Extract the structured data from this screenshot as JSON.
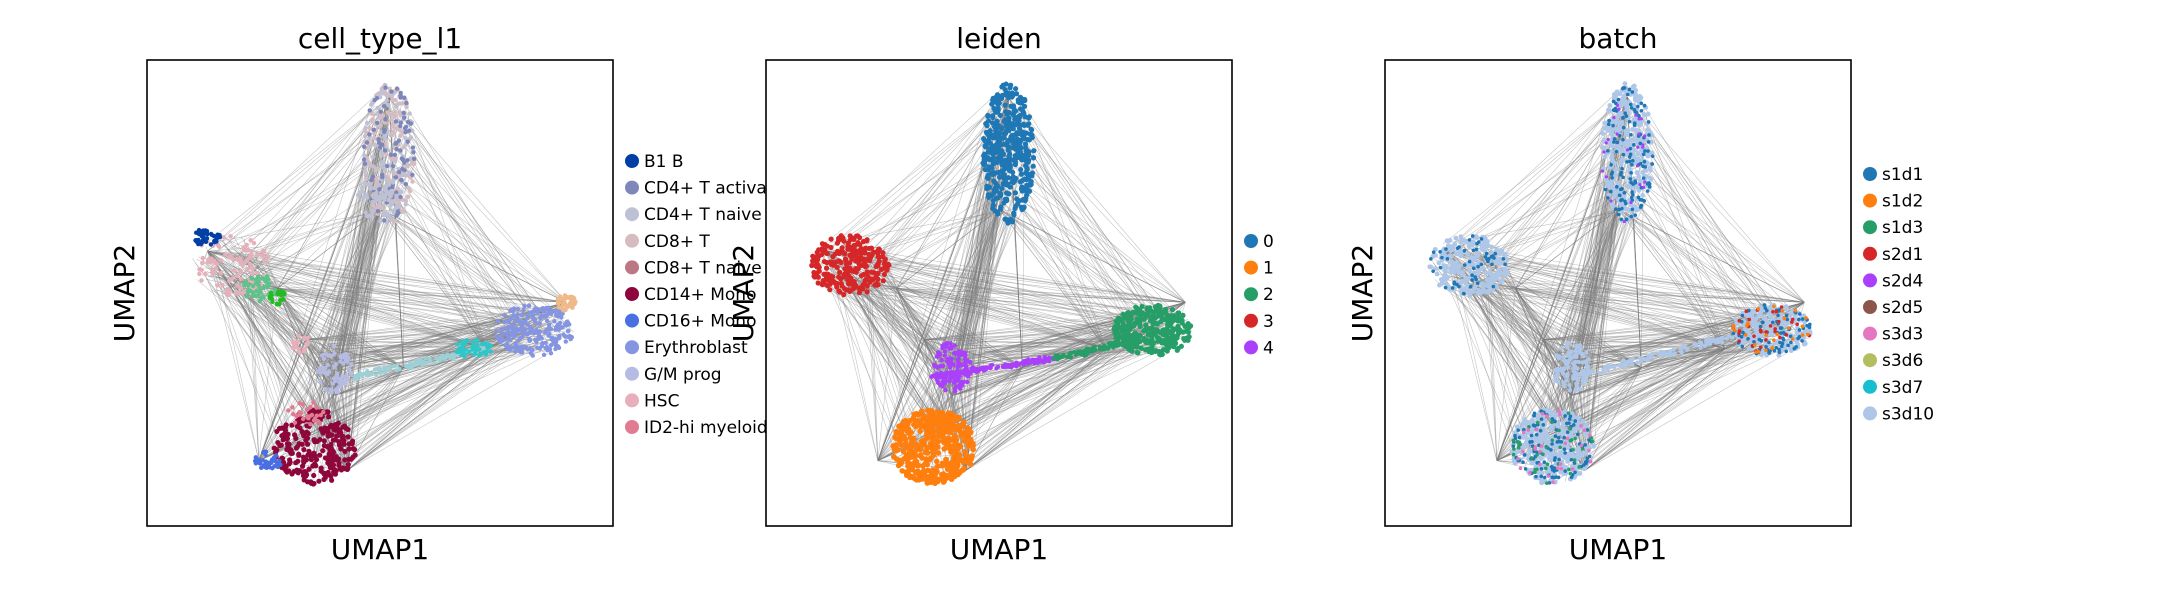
{
  "chart_data": [
    {
      "type": "scatter",
      "title": "cell_type_l1",
      "xlabel": "UMAP1",
      "ylabel": "UMAP2",
      "xticks": [],
      "yticks": [],
      "legend_placement": "right",
      "legend": [
        {
          "label": "B1 B",
          "color": "#023fa5"
        },
        {
          "label": "CD4+ T activa",
          "color": "#7d87b9"
        },
        {
          "label": "CD4+ T naive",
          "color": "#bec1d4"
        },
        {
          "label": "CD8+ T",
          "color": "#d6bcc0"
        },
        {
          "label": "CD8+ T naive",
          "color": "#bb7784"
        },
        {
          "label": "CD14+ Mono",
          "color": "#8e063b"
        },
        {
          "label": "CD16+ Mono",
          "color": "#4a6fe3"
        },
        {
          "label": "Erythroblast",
          "color": "#8595e1"
        },
        {
          "label": "G/M prog",
          "color": "#b5bbe3"
        },
        {
          "label": "HSC",
          "color": "#e6afb9"
        },
        {
          "label": "ID2-hi myeloid",
          "color": "#e07b91"
        }
      ]
    },
    {
      "type": "scatter",
      "title": "leiden",
      "xlabel": "UMAP1",
      "ylabel": "UMAP2",
      "xticks": [],
      "yticks": [],
      "legend_placement": "right",
      "legend": [
        {
          "label": "0",
          "color": "#1f77b4"
        },
        {
          "label": "1",
          "color": "#ff7f0e"
        },
        {
          "label": "2",
          "color": "#279e68"
        },
        {
          "label": "3",
          "color": "#d62728"
        },
        {
          "label": "4",
          "color": "#aa40fc"
        }
      ]
    },
    {
      "type": "scatter",
      "title": "batch",
      "xlabel": "UMAP1",
      "ylabel": "UMAP2",
      "xticks": [],
      "yticks": [],
      "legend_placement": "right",
      "legend": [
        {
          "label": "s1d1",
          "color": "#1f77b4"
        },
        {
          "label": "s1d2",
          "color": "#ff7f0e"
        },
        {
          "label": "s1d3",
          "color": "#279e68"
        },
        {
          "label": "s2d1",
          "color": "#d62728"
        },
        {
          "label": "s2d4",
          "color": "#aa40fc"
        },
        {
          "label": "s2d5",
          "color": "#8c564b"
        },
        {
          "label": "s3d3",
          "color": "#e377c2"
        },
        {
          "label": "s3d6",
          "color": "#b5bd61"
        },
        {
          "label": "s3d7",
          "color": "#17becf"
        },
        {
          "label": "s3d10",
          "color": "#aec7e8"
        }
      ]
    }
  ],
  "style": {
    "edge_color": "#7f7f7f",
    "frame_color": "#000000"
  }
}
